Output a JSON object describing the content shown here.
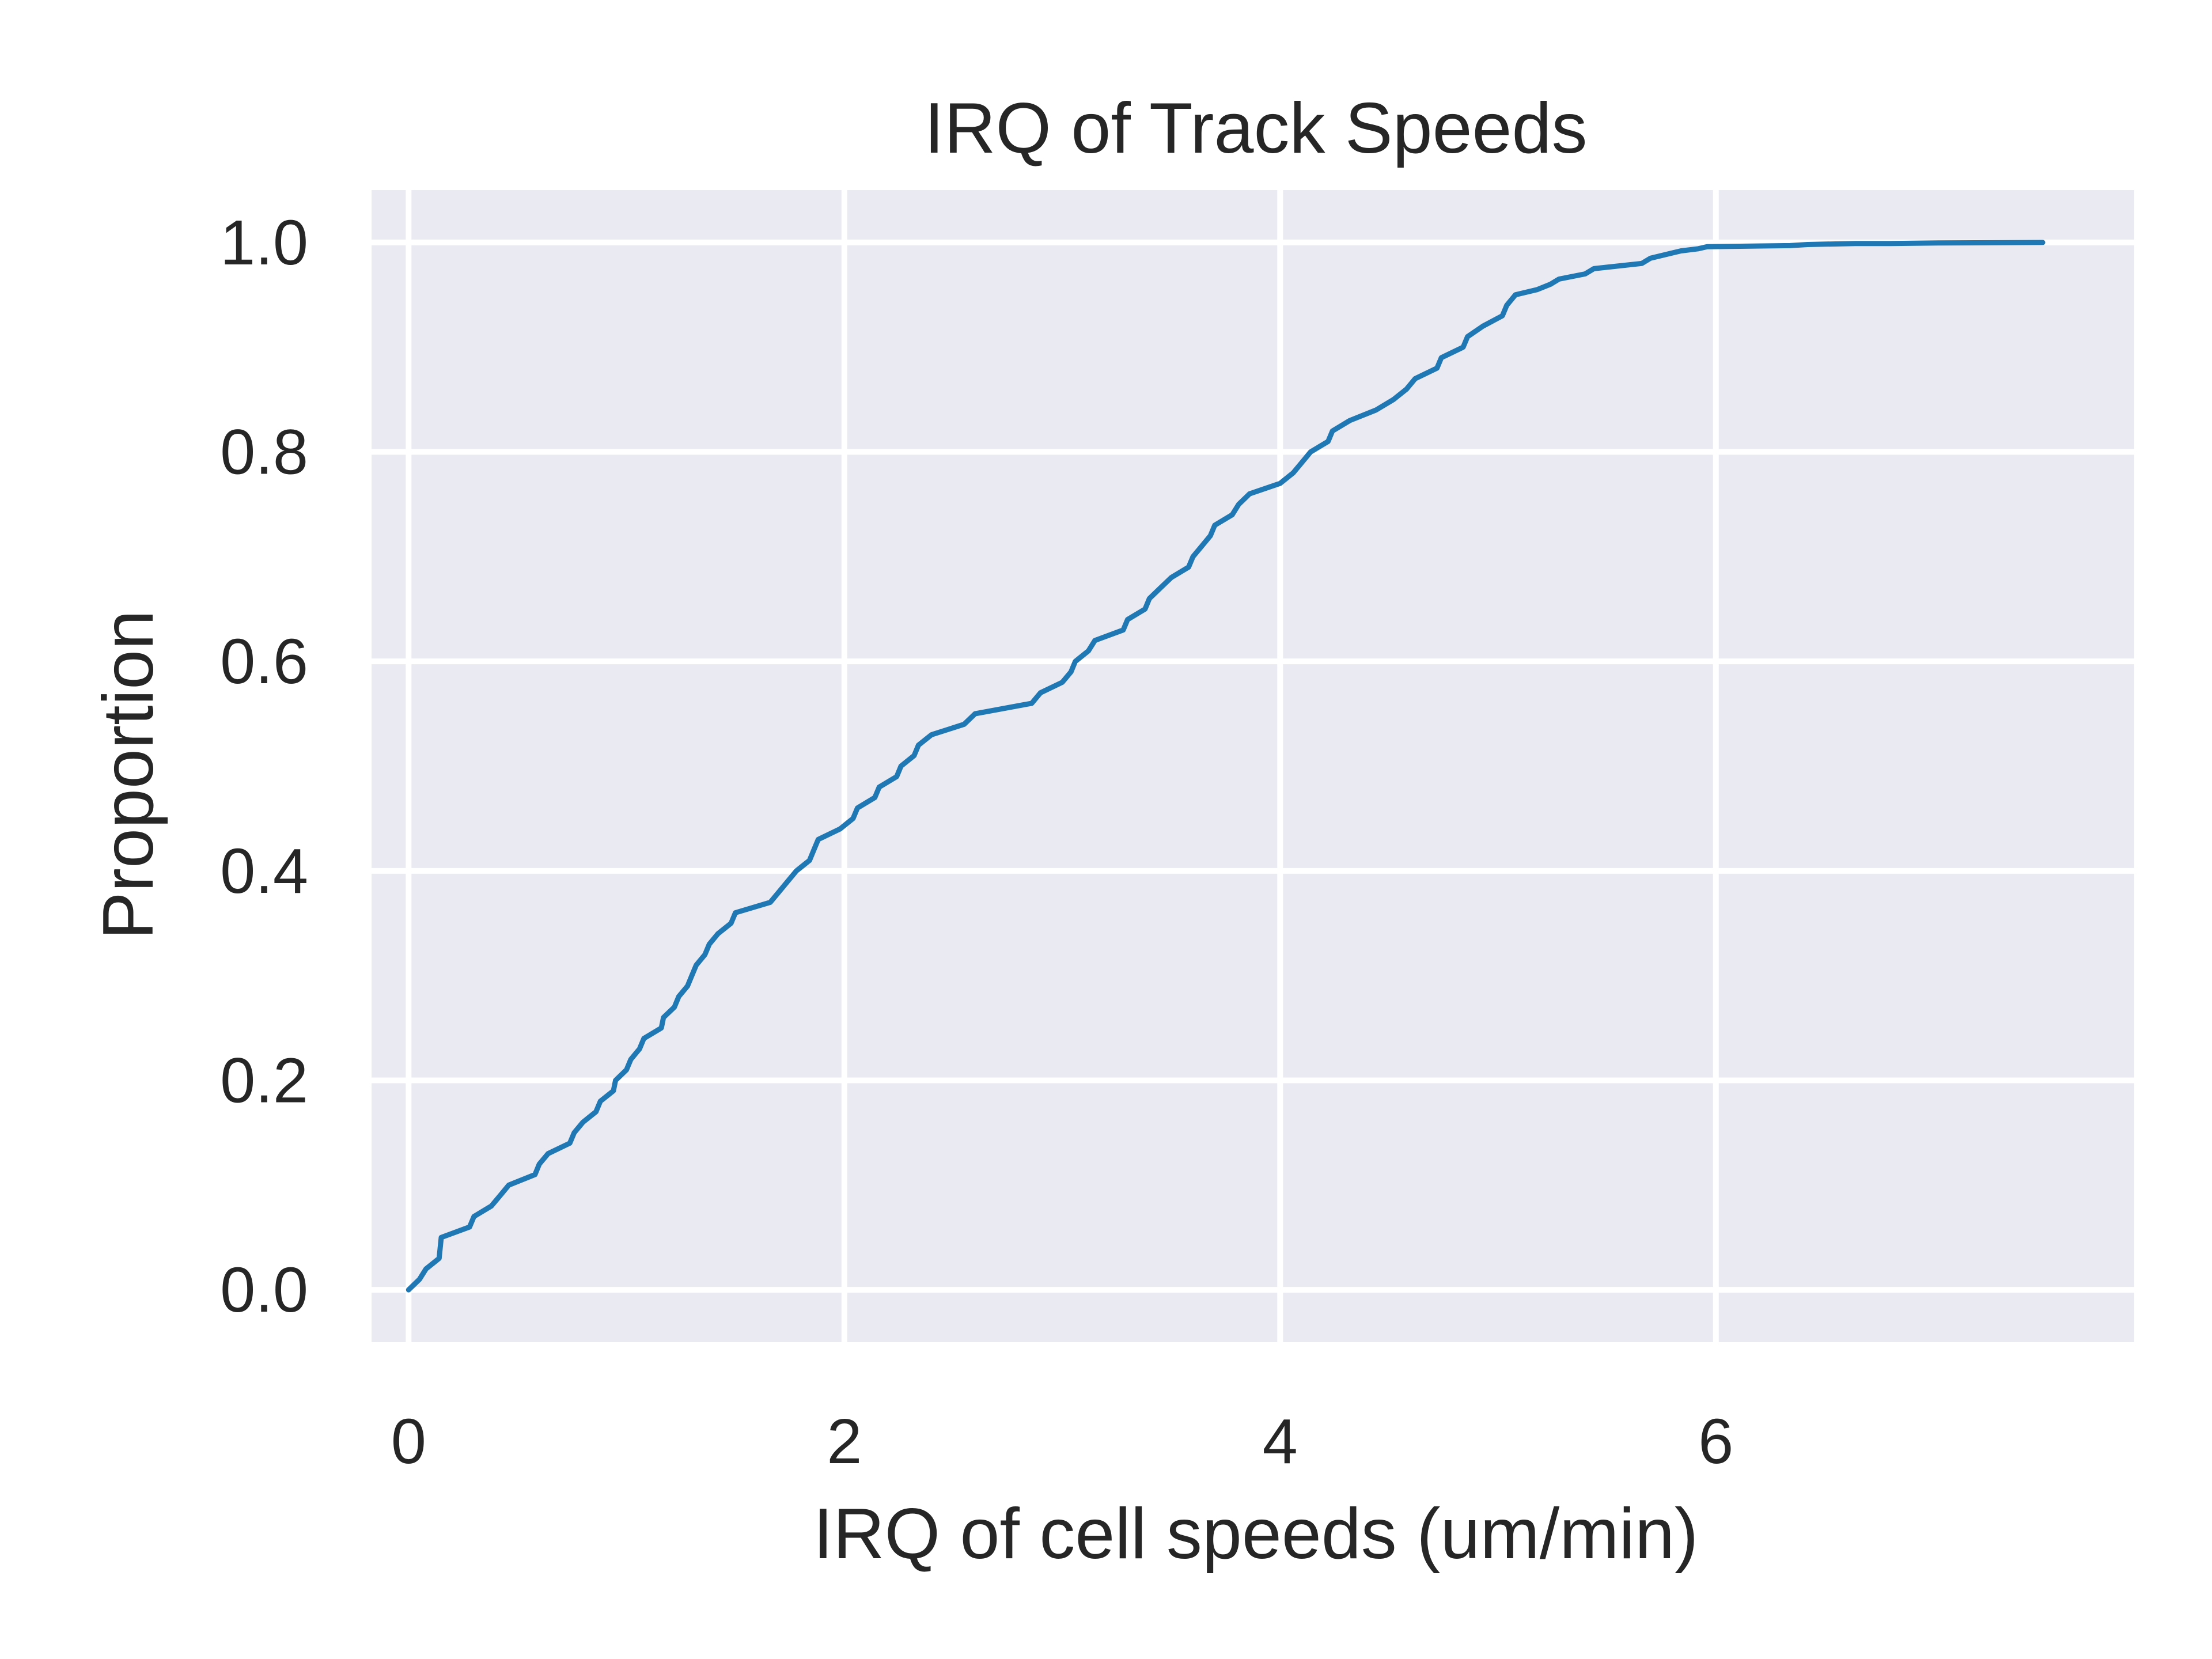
{
  "chart_data": {
    "type": "line",
    "title": "IRQ of Track Speeds",
    "xlabel": "IRQ of cell speeds (um/min)",
    "ylabel": "Proportion",
    "xlim": [
      -0.17,
      7.92
    ],
    "ylim": [
      -0.05,
      1.05
    ],
    "xticks": [
      0,
      2,
      4,
      6
    ],
    "xtick_labels": [
      "0",
      "2",
      "4",
      "6"
    ],
    "yticks": [
      0.0,
      0.2,
      0.4,
      0.6,
      0.8,
      1.0
    ],
    "ytick_labels": [
      "0.0",
      "0.2",
      "0.4",
      "0.6",
      "0.8",
      "1.0"
    ],
    "grid": true,
    "background": "#eaeaf2",
    "grid_color": "#ffffff",
    "line_color": "#1f77b4",
    "series": [
      {
        "x": [
          0.0,
          0.05,
          0.08,
          0.14,
          0.15,
          0.28,
          0.3,
          0.38,
          0.42,
          0.46,
          0.58,
          0.6,
          0.64,
          0.74,
          0.76,
          0.8,
          0.86,
          0.88,
          0.94,
          0.95,
          1.0,
          1.02,
          1.06,
          1.08,
          1.16,
          1.17,
          1.22,
          1.24,
          1.28,
          1.3,
          1.32,
          1.36,
          1.38,
          1.42,
          1.48,
          1.5,
          1.66,
          1.7,
          1.74,
          1.78,
          1.84,
          1.86,
          1.88,
          1.98,
          2.04,
          2.06,
          2.14,
          2.16,
          2.24,
          2.26,
          2.32,
          2.34,
          2.4,
          2.55,
          2.6,
          2.86,
          2.9,
          3.0,
          3.04,
          3.06,
          3.12,
          3.15,
          3.28,
          3.3,
          3.38,
          3.4,
          3.45,
          3.5,
          3.58,
          3.6,
          3.64,
          3.68,
          3.7,
          3.78,
          3.81,
          3.86,
          4.0,
          4.06,
          4.1,
          4.14,
          4.22,
          4.24,
          4.32,
          4.44,
          4.52,
          4.58,
          4.62,
          4.72,
          4.74,
          4.84,
          4.86,
          4.93,
          5.02,
          5.04,
          5.08,
          5.18,
          5.24,
          5.28,
          5.4,
          5.44,
          5.66,
          5.7,
          5.8,
          5.84,
          5.92,
          5.96,
          6.34,
          6.42,
          6.64,
          6.8,
          7.02,
          7.5
        ],
        "y": [
          0.0,
          0.01,
          0.02,
          0.03,
          0.05,
          0.06,
          0.07,
          0.08,
          0.09,
          0.1,
          0.11,
          0.12,
          0.13,
          0.14,
          0.15,
          0.16,
          0.17,
          0.18,
          0.19,
          0.2,
          0.21,
          0.22,
          0.23,
          0.24,
          0.25,
          0.26,
          0.27,
          0.28,
          0.29,
          0.3,
          0.31,
          0.32,
          0.33,
          0.34,
          0.35,
          0.36,
          0.37,
          0.38,
          0.39,
          0.4,
          0.41,
          0.42,
          0.43,
          0.44,
          0.45,
          0.46,
          0.47,
          0.48,
          0.49,
          0.5,
          0.51,
          0.52,
          0.53,
          0.54,
          0.55,
          0.56,
          0.57,
          0.58,
          0.59,
          0.6,
          0.61,
          0.62,
          0.63,
          0.64,
          0.65,
          0.66,
          0.67,
          0.68,
          0.69,
          0.7,
          0.71,
          0.72,
          0.73,
          0.74,
          0.75,
          0.76,
          0.77,
          0.78,
          0.79,
          0.8,
          0.81,
          0.82,
          0.83,
          0.84,
          0.85,
          0.86,
          0.87,
          0.88,
          0.89,
          0.9,
          0.91,
          0.92,
          0.93,
          0.94,
          0.95,
          0.955,
          0.96,
          0.965,
          0.97,
          0.975,
          0.98,
          0.985,
          0.99,
          0.992,
          0.994,
          0.996,
          0.997,
          0.998,
          0.999,
          0.999,
          0.9995,
          1.0
        ]
      }
    ]
  }
}
